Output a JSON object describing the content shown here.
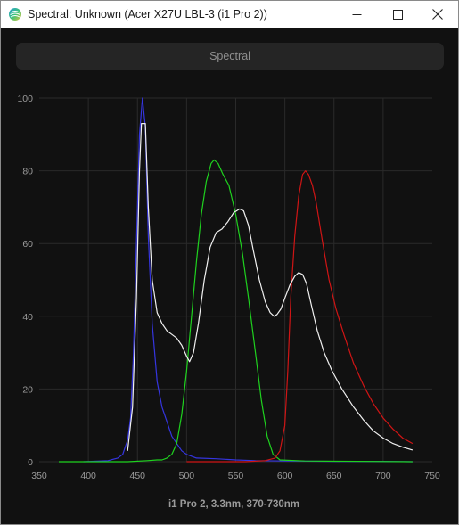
{
  "window": {
    "title": "Spectral: Unknown (Acer X27U LBL-3 (i1 Pro 2))",
    "controls": {
      "minimize_icon": "minimize-icon",
      "maximize_icon": "maximize-icon",
      "close_icon": "close-icon"
    }
  },
  "tab": {
    "label": "Spectral"
  },
  "colors": {
    "background": "#111111",
    "grid": "#2a2a2a",
    "axis_text": "#9a9a9a",
    "blue": "#3535e0",
    "green": "#1fd21f",
    "red": "#d01515",
    "white": "#f0f0f0"
  },
  "chart_data": {
    "type": "line",
    "title": "",
    "xlabel": "i1 Pro 2, 3.3nm, 370-730nm",
    "ylabel": "",
    "xlim": [
      350,
      750
    ],
    "ylim": [
      0,
      100
    ],
    "xticks": [
      350,
      400,
      450,
      500,
      550,
      600,
      650,
      700,
      750
    ],
    "yticks": [
      0,
      20,
      40,
      60,
      80,
      100
    ],
    "grid": true,
    "series": [
      {
        "color_key": "blue",
        "points": [
          [
            395,
            0
          ],
          [
            420,
            0.3
          ],
          [
            430,
            1
          ],
          [
            435,
            2
          ],
          [
            440,
            6
          ],
          [
            443,
            12
          ],
          [
            446,
            30
          ],
          [
            449,
            60
          ],
          [
            452,
            90
          ],
          [
            455,
            100
          ],
          [
            458,
            92
          ],
          [
            461,
            62
          ],
          [
            465,
            38
          ],
          [
            470,
            22
          ],
          [
            475,
            15
          ],
          [
            480,
            11
          ],
          [
            485,
            7
          ],
          [
            490,
            5
          ],
          [
            495,
            3
          ],
          [
            500,
            2
          ],
          [
            510,
            1
          ],
          [
            530,
            0.8
          ],
          [
            550,
            0.5
          ],
          [
            570,
            0.3
          ],
          [
            600,
            0.2
          ],
          [
            650,
            0.1
          ],
          [
            700,
            0.1
          ],
          [
            730,
            0
          ]
        ]
      },
      {
        "color_key": "green",
        "points": [
          [
            370,
            0
          ],
          [
            440,
            0
          ],
          [
            460,
            0.3
          ],
          [
            470,
            0.5
          ],
          [
            475,
            0.5
          ],
          [
            480,
            1
          ],
          [
            485,
            2
          ],
          [
            490,
            5
          ],
          [
            495,
            13
          ],
          [
            500,
            25
          ],
          [
            505,
            40
          ],
          [
            510,
            55
          ],
          [
            515,
            68
          ],
          [
            520,
            77
          ],
          [
            525,
            82
          ],
          [
            528,
            83
          ],
          [
            532,
            82
          ],
          [
            537,
            79
          ],
          [
            543,
            76
          ],
          [
            550,
            68
          ],
          [
            557,
            57
          ],
          [
            563,
            45
          ],
          [
            570,
            30
          ],
          [
            576,
            17
          ],
          [
            582,
            7
          ],
          [
            588,
            2
          ],
          [
            595,
            0.5
          ],
          [
            620,
            0.2
          ],
          [
            730,
            0
          ]
        ]
      },
      {
        "color_key": "red",
        "points": [
          [
            500,
            0
          ],
          [
            560,
            0
          ],
          [
            580,
            0.3
          ],
          [
            590,
            1
          ],
          [
            595,
            3
          ],
          [
            600,
            10
          ],
          [
            603,
            25
          ],
          [
            606,
            45
          ],
          [
            610,
            62
          ],
          [
            614,
            73
          ],
          [
            618,
            79
          ],
          [
            621,
            80
          ],
          [
            624,
            79
          ],
          [
            628,
            76
          ],
          [
            632,
            71
          ],
          [
            638,
            61
          ],
          [
            645,
            50
          ],
          [
            652,
            42
          ],
          [
            660,
            35
          ],
          [
            670,
            27
          ],
          [
            680,
            21
          ],
          [
            690,
            16
          ],
          [
            700,
            12
          ],
          [
            710,
            9
          ],
          [
            720,
            6.5
          ],
          [
            730,
            5
          ]
        ]
      },
      {
        "color_key": "white",
        "points": [
          [
            440,
            3
          ],
          [
            445,
            15
          ],
          [
            449,
            45
          ],
          [
            452,
            80
          ],
          [
            454,
            93
          ],
          [
            458,
            93
          ],
          [
            461,
            70
          ],
          [
            465,
            50
          ],
          [
            470,
            41
          ],
          [
            475,
            38
          ],
          [
            480,
            36
          ],
          [
            485,
            35
          ],
          [
            490,
            34
          ],
          [
            495,
            32
          ],
          [
            500,
            29
          ],
          [
            503,
            27.5
          ],
          [
            507,
            30
          ],
          [
            512,
            38
          ],
          [
            518,
            50
          ],
          [
            524,
            59
          ],
          [
            530,
            63
          ],
          [
            536,
            64
          ],
          [
            542,
            66
          ],
          [
            548,
            68.5
          ],
          [
            554,
            69.5
          ],
          [
            558,
            69
          ],
          [
            563,
            65
          ],
          [
            568,
            58
          ],
          [
            574,
            50
          ],
          [
            580,
            44
          ],
          [
            585,
            41
          ],
          [
            589,
            40
          ],
          [
            592,
            40.5
          ],
          [
            596,
            42
          ],
          [
            600,
            45
          ],
          [
            605,
            48.5
          ],
          [
            610,
            51
          ],
          [
            614,
            52
          ],
          [
            618,
            51.5
          ],
          [
            622,
            49
          ],
          [
            627,
            43
          ],
          [
            633,
            36
          ],
          [
            640,
            30
          ],
          [
            648,
            25
          ],
          [
            658,
            20
          ],
          [
            670,
            15
          ],
          [
            680,
            11.5
          ],
          [
            690,
            8.5
          ],
          [
            700,
            6.5
          ],
          [
            710,
            5
          ],
          [
            720,
            4
          ],
          [
            730,
            3.2
          ]
        ]
      }
    ]
  }
}
